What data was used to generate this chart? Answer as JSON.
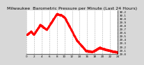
{
  "title": "Milwaukee  Barometric Pressure per Minute (Last 24 Hours)",
  "line_color": "#ff0000",
  "bg_color": "#d8d8d8",
  "plot_bg": "#ffffff",
  "grid_color": "#888888",
  "ylim": [
    29.0,
    30.25
  ],
  "yticks": [
    29.0,
    29.1,
    29.2,
    29.3,
    29.4,
    29.5,
    29.6,
    29.7,
    29.8,
    29.9,
    30.0,
    30.1,
    30.2
  ],
  "num_points": 1440,
  "markersize": 0.7,
  "title_fontsize": 4.5,
  "tick_fontsize": 3.0,
  "num_xticks": 13,
  "hour_labels": [
    "0",
    "2",
    "4",
    "6",
    "8",
    "10",
    "12",
    "14",
    "16",
    "18",
    "20",
    "22",
    "24"
  ]
}
